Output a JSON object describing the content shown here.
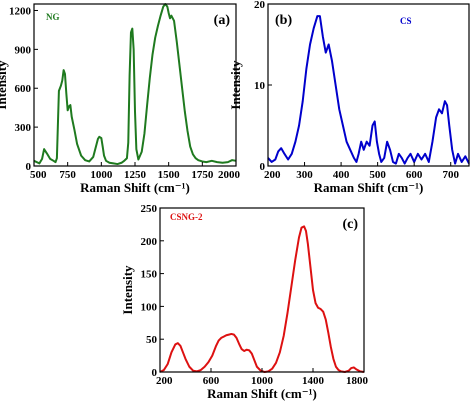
{
  "chart_data": [
    {
      "type": "line",
      "panel_label": "(a)",
      "sample_label": "NG",
      "color": "#1f7a1f",
      "xlabel": "Raman Shift (cm⁻¹)",
      "ylabel": "Intensity",
      "xlim": [
        500,
        2000
      ],
      "ylim": [
        0,
        1250
      ],
      "xticks": [
        500,
        750,
        1000,
        1250,
        1500,
        1750,
        2000
      ],
      "yticks": [
        0,
        300,
        600,
        900,
        1200
      ],
      "series": [
        {
          "x": [
            500,
            540,
            560,
            575,
            600,
            620,
            645,
            660,
            670,
            685,
            700,
            710,
            720,
            730,
            740,
            750,
            760,
            770,
            780,
            800,
            820,
            850,
            880,
            910,
            940,
            960,
            975,
            985,
            1000,
            1010,
            1020,
            1035,
            1060,
            1090,
            1120,
            1150,
            1170,
            1180,
            1190,
            1200,
            1210,
            1220,
            1230,
            1240,
            1250,
            1260,
            1275,
            1300,
            1320,
            1340,
            1360,
            1380,
            1400,
            1420,
            1440,
            1460,
            1475,
            1490,
            1500,
            1510,
            1520,
            1540,
            1560,
            1580,
            1600,
            1620,
            1640,
            1660,
            1680,
            1700,
            1720,
            1750,
            1780,
            1820,
            1860,
            1900,
            1940,
            1970,
            2000
          ],
          "y": [
            40,
            20,
            55,
            130,
            90,
            55,
            40,
            30,
            60,
            580,
            620,
            660,
            740,
            710,
            560,
            430,
            460,
            470,
            380,
            280,
            170,
            80,
            45,
            35,
            70,
            150,
            210,
            225,
            215,
            150,
            80,
            40,
            25,
            20,
            15,
            25,
            40,
            50,
            60,
            180,
            700,
            1030,
            1060,
            900,
            420,
            130,
            50,
            110,
            250,
            470,
            680,
            860,
            990,
            1080,
            1160,
            1230,
            1250,
            1230,
            1180,
            1140,
            1160,
            1120,
            960,
            780,
            600,
            420,
            270,
            150,
            90,
            60,
            45,
            35,
            30,
            40,
            30,
            25,
            30,
            45,
            40
          ]
        }
      ]
    },
    {
      "type": "line",
      "panel_label": "(b)",
      "sample_label": "CS",
      "color": "#0000cc",
      "xlabel": "Raman Shift (cm⁻¹)",
      "ylabel": "Intensity",
      "xlim": [
        200,
        750
      ],
      "ylim": [
        0,
        20
      ],
      "xticks": [
        200,
        300,
        400,
        500,
        600,
        700
      ],
      "yticks": [
        0,
        10,
        20
      ],
      "series": [
        {
          "x": [
            200,
            210,
            220,
            228,
            236,
            245,
            255,
            265,
            275,
            285,
            295,
            305,
            315,
            325,
            335,
            342,
            350,
            358,
            366,
            375,
            385,
            395,
            405,
            415,
            425,
            435,
            442,
            448,
            455,
            462,
            470,
            478,
            486,
            492,
            498,
            504,
            510,
            518,
            526,
            534,
            542,
            550,
            558,
            566,
            574,
            582,
            590,
            600,
            610,
            620,
            630,
            640,
            650,
            660,
            668,
            676,
            684,
            690,
            696,
            704,
            712,
            720,
            730,
            740,
            750
          ],
          "y": [
            1,
            0.5,
            0.8,
            1.8,
            2.2,
            1.5,
            0.8,
            1.5,
            3,
            5,
            8,
            12,
            15,
            17,
            18.5,
            18.5,
            16,
            14,
            15,
            13,
            10,
            7,
            5,
            3,
            2,
            1,
            0.5,
            1.5,
            3,
            2,
            3,
            2.5,
            5,
            5.5,
            3,
            1.5,
            0.5,
            1,
            3,
            2,
            0.5,
            0.3,
            1.5,
            1,
            0.3,
            1,
            1.5,
            0.5,
            1.5,
            0.8,
            1.5,
            0.5,
            3,
            6,
            7,
            6.5,
            8,
            7.5,
            5,
            2,
            0.3,
            1.5,
            0.5,
            1.2,
            0.3
          ]
        }
      ]
    },
    {
      "type": "line",
      "panel_label": "(c)",
      "sample_label": "CSNG-2",
      "color": "#dd1111",
      "xlabel": "Raman Shift (cm⁻¹)",
      "ylabel": "Intensity",
      "xlim": [
        200,
        1800
      ],
      "ylim": [
        0,
        250
      ],
      "xticks": [
        200,
        600,
        1000,
        1400,
        1800
      ],
      "yticks": [
        0,
        50,
        100,
        150,
        200,
        250
      ],
      "series": [
        {
          "x": [
            200,
            230,
            260,
            290,
            320,
            340,
            360,
            380,
            400,
            430,
            460,
            490,
            520,
            550,
            580,
            610,
            640,
            660,
            680,
            700,
            720,
            740,
            760,
            780,
            800,
            820,
            840,
            860,
            880,
            900,
            920,
            940,
            960,
            990,
            1020,
            1050,
            1080,
            1110,
            1140,
            1170,
            1200,
            1230,
            1260,
            1290,
            1310,
            1330,
            1345,
            1360,
            1380,
            1400,
            1420,
            1440,
            1460,
            1480,
            1500,
            1520,
            1540,
            1560,
            1580,
            1600,
            1620,
            1650,
            1680,
            1700,
            1720,
            1740,
            1770,
            1800
          ],
          "y": [
            0,
            3,
            12,
            30,
            42,
            44,
            40,
            30,
            20,
            8,
            2,
            1,
            3,
            8,
            15,
            25,
            40,
            48,
            52,
            54,
            56,
            57,
            58,
            57,
            52,
            43,
            35,
            32,
            34,
            33,
            28,
            18,
            8,
            2,
            0,
            1,
            5,
            14,
            30,
            55,
            90,
            130,
            170,
            205,
            220,
            222,
            215,
            195,
            160,
            125,
            105,
            98,
            96,
            92,
            80,
            60,
            38,
            20,
            8,
            3,
            1,
            0,
            2,
            6,
            7,
            4,
            1,
            0
          ]
        }
      ]
    }
  ]
}
